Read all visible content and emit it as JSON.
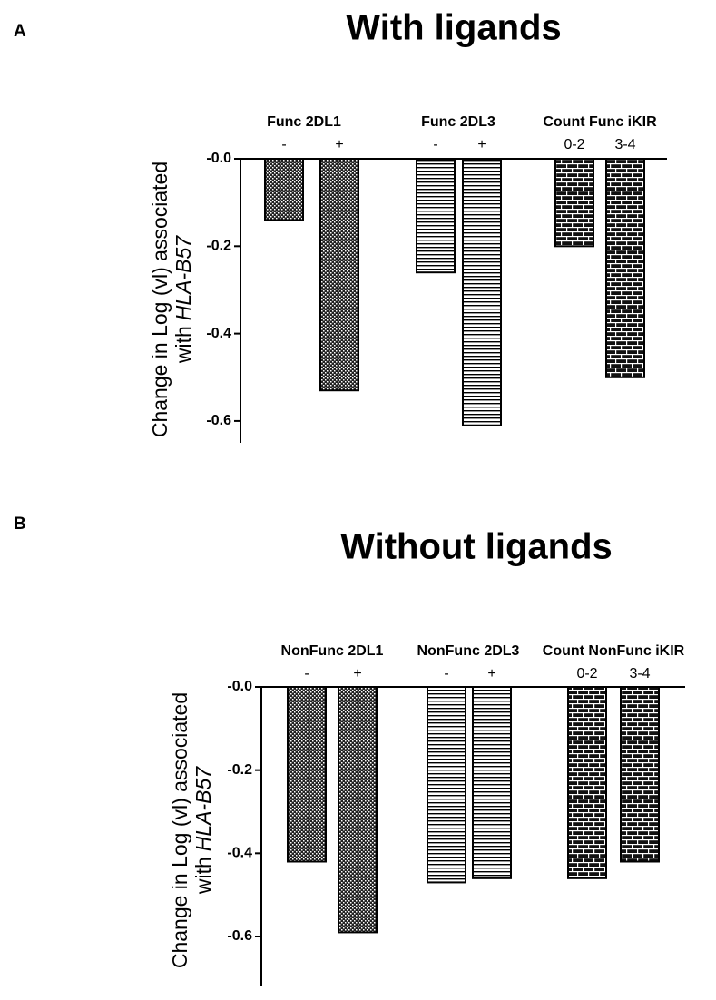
{
  "chart_data": [
    {
      "type": "bar",
      "panel_label": "A",
      "title": "With ligands",
      "ylabel": {
        "line1": "Change in Log (vl) associated",
        "line2": "with",
        "line2_italic": "HLA-B57"
      },
      "groups": [
        {
          "label": "Func 2DL1",
          "categories": [
            "-",
            "+"
          ],
          "values": [
            -0.14,
            -0.53
          ],
          "pattern": "dots"
        },
        {
          "label": "Func 2DL3",
          "categories": [
            "-",
            "+"
          ],
          "values": [
            -0.26,
            -0.61
          ],
          "pattern": "stripes"
        },
        {
          "label": "Count Func iKIR",
          "categories": [
            "0-2",
            "3-4"
          ],
          "values": [
            -0.2,
            -0.5
          ],
          "pattern": "brick"
        }
      ],
      "ylim": [
        -0.65,
        0
      ],
      "yticks": [
        {
          "value": 0,
          "label": "-0.0"
        },
        -0.2,
        -0.4,
        -0.6
      ]
    },
    {
      "type": "bar",
      "panel_label": "B",
      "title": "Without ligands",
      "ylabel": {
        "line1": "Change in Log (vl) associated",
        "line2": "with",
        "line2_italic": "HLA-B57"
      },
      "groups": [
        {
          "label": "NonFunc 2DL1",
          "categories": [
            "-",
            "+"
          ],
          "values": [
            -0.42,
            -0.59
          ],
          "pattern": "dots"
        },
        {
          "label": "NonFunc 2DL3",
          "categories": [
            "-",
            "+"
          ],
          "values": [
            -0.47,
            -0.46
          ],
          "pattern": "stripes"
        },
        {
          "label": "Count NonFunc iKIR",
          "categories": [
            "0-2",
            "3-4"
          ],
          "values": [
            -0.46,
            -0.42
          ],
          "pattern": "brick"
        }
      ],
      "ylim": [
        -0.72,
        0
      ],
      "yticks": [
        {
          "value": 0,
          "label": "-0.0"
        },
        -0.2,
        -0.4,
        -0.6
      ]
    }
  ]
}
